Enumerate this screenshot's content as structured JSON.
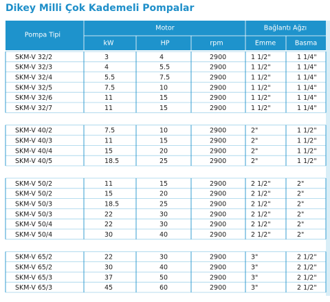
{
  "title": "Dikey Milli Çok Kademeli Pompalar",
  "table": {
    "header": {
      "type": "Pompa Tipi",
      "motor": "Motor",
      "connection": "Bağlantı Ağzı",
      "sub": [
        "kW",
        "HP",
        "rpm",
        "Emme",
        "Basma"
      ]
    },
    "groups": [
      [
        [
          "SKM-V 32/2",
          "3",
          "4",
          "2900",
          "1 1/2\"",
          "1 1/4\""
        ],
        [
          "SKM-V 32/3",
          "4",
          "5.5",
          "2900",
          "1 1/2\"",
          "1 1/4\""
        ],
        [
          "SKM-V 32/4",
          "5.5",
          "7.5",
          "2900",
          "1 1/2\"",
          "1 1/4\""
        ],
        [
          "SKM-V 32/5",
          "7.5",
          "10",
          "2900",
          "1 1/2\"",
          "1 1/4\""
        ],
        [
          "SKM-V 32/6",
          "11",
          "15",
          "2900",
          "1 1/2\"",
          "1 1/4\""
        ],
        [
          "SKM-V 32/7",
          "11",
          "15",
          "2900",
          "1 1/2\"",
          "1 1/4\""
        ]
      ],
      [
        [
          "SKM-V 40/2",
          "7.5",
          "10",
          "2900",
          "2\"",
          "1 1/2\""
        ],
        [
          "SKM-V 40/3",
          "11",
          "15",
          "2900",
          "2\"",
          "1 1/2\""
        ],
        [
          "SKM-V 40/4",
          "15",
          "20",
          "2900",
          "2\"",
          "1 1/2\""
        ],
        [
          "SKM-V 40/5",
          "18.5",
          "25",
          "2900",
          "2\"",
          "1 1/2\""
        ]
      ],
      [
        [
          "SKM-V 50/2",
          "11",
          "15",
          "2900",
          "2 1/2\"",
          "2\""
        ],
        [
          "SKM-V 50/2",
          "15",
          "20",
          "2900",
          "2 1/2\"",
          "2\""
        ],
        [
          "SKM-V 50/3",
          "18.5",
          "25",
          "2900",
          "2 1/2\"",
          "2\""
        ],
        [
          "SKM-V 50/3",
          "22",
          "30",
          "2900",
          "2 1/2\"",
          "2\""
        ],
        [
          "SKM-V 50/4",
          "22",
          "30",
          "2900",
          "2 1/2\"",
          "2\""
        ],
        [
          "SKM-V 50/4",
          "30",
          "40",
          "2900",
          "2 1/2\"",
          "2\""
        ]
      ],
      [
        [
          "SKM-V 65/2",
          "22",
          "30",
          "2900",
          "3\"",
          "2 1/2\""
        ],
        [
          "SKM-V 65/2",
          "30",
          "40",
          "2900",
          "3\"",
          "2 1/2\""
        ],
        [
          "SKM-V 65/3",
          "37",
          "50",
          "2900",
          "3\"",
          "2 1/2\""
        ],
        [
          "SKM-V 65/3",
          "45",
          "60",
          "2900",
          "3\"",
          "2 1/2\""
        ]
      ]
    ]
  }
}
